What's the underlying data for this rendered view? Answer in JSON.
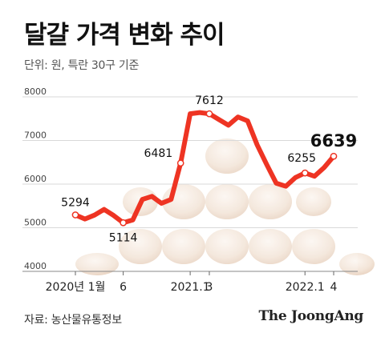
{
  "header": {
    "title": "달걀 가격 변화 추이",
    "subtitle": "단위: 원, 특란 30구 기준"
  },
  "footer": {
    "source": "자료: 농산물유통정보",
    "logo": "The JoongAng"
  },
  "colors": {
    "line": "#ee3423",
    "point_fill": "#ffffff",
    "grid": "#d9d9d9",
    "axis_text": "#333333",
    "egg_light": "#f4e6da",
    "egg_mid": "#e8d0bc"
  },
  "chart_data": {
    "type": "line",
    "title": "달걀 가격 변화 추이",
    "ylabel": "단위: 원, 특란 30구 기준",
    "ylim": [
      4000,
      8000
    ],
    "yticks": [
      4000,
      5000,
      6000,
      7000,
      8000
    ],
    "grid": true,
    "x_tick_labels": [
      {
        "label": "2020년 1월",
        "index": 0
      },
      {
        "label": "6",
        "index": 5
      },
      {
        "label": "2021.1",
        "index": 12
      },
      {
        "label": "3",
        "index": 14
      },
      {
        "label": "2022.1",
        "index": 24
      },
      {
        "label": "4",
        "index": 27
      }
    ],
    "x": [
      "2020-01",
      "2020-02",
      "2020-03",
      "2020-04",
      "2020-05",
      "2020-06",
      "2020-07",
      "2020-08",
      "2020-09",
      "2020-10",
      "2020-11",
      "2020-12",
      "2021-01",
      "2021-02",
      "2021-03",
      "2021-04",
      "2021-05",
      "2021-06",
      "2021-07",
      "2021-08",
      "2021-09",
      "2021-10",
      "2021-11",
      "2021-12",
      "2022-01",
      "2022-02",
      "2022-03",
      "2022-04"
    ],
    "values": [
      5294,
      5200,
      5290,
      5420,
      5280,
      5114,
      5180,
      5650,
      5720,
      5560,
      5650,
      6481,
      7612,
      7640,
      7612,
      7480,
      7350,
      7540,
      7450,
      6900,
      6450,
      6020,
      5950,
      6150,
      6255,
      6180,
      6380,
      6639
    ],
    "labels": [
      {
        "index": 0,
        "text": "5294"
      },
      {
        "index": 5,
        "text": "5114"
      },
      {
        "index": 11,
        "text": "6481"
      },
      {
        "index": 14,
        "text": "7612"
      },
      {
        "index": 24,
        "text": "6255"
      },
      {
        "index": 27,
        "text": "6639",
        "emphasis": true
      }
    ],
    "markers": [
      0,
      5,
      11,
      14,
      24,
      27
    ]
  }
}
